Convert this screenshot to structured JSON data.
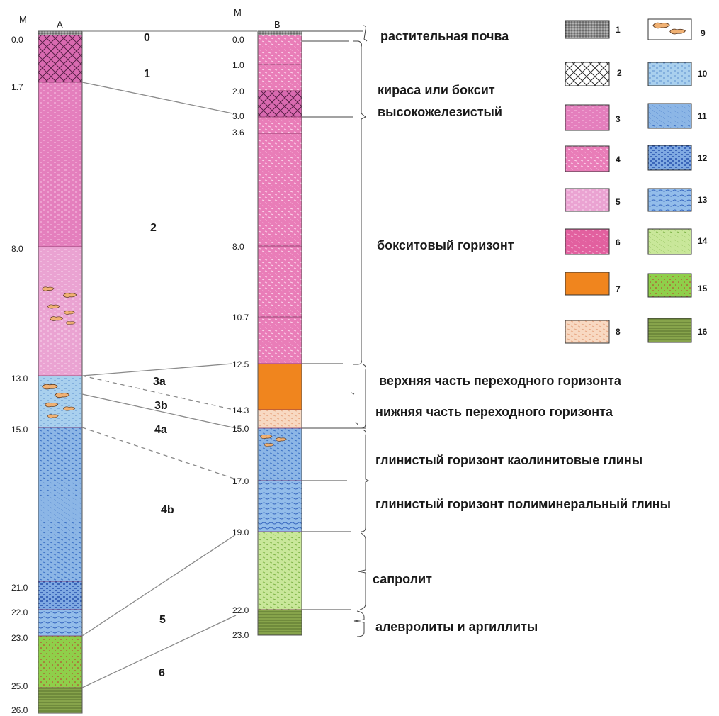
{
  "unit_label_a": "М",
  "unit_label_b": "М",
  "column_a": {
    "header": "A",
    "depths": [
      "0.0",
      "1.7",
      "8.0",
      "13.0",
      "15.0",
      "21.0",
      "22.0",
      "23.0",
      "25.0",
      "26.0"
    ],
    "zones": [
      "0",
      "1",
      "2",
      "3a",
      "3b",
      "4a",
      "4b",
      "5",
      "6"
    ]
  },
  "column_b": {
    "header": "B",
    "depths": [
      "0.0",
      "1.0",
      "2.0",
      "3.0",
      "3.6",
      "8.0",
      "10.7",
      "12.5",
      "14.3",
      "15.0",
      "17.0",
      "19.0",
      "22.0",
      "23.0"
    ]
  },
  "horizons": [
    "растительная почва",
    "кираса или боксит",
    "высокожелезистый",
    "бокситовый горизонт",
    "верхняя часть переходного горизонта",
    "нижняя часть переходного горизонта",
    "глинистый горизонт каолинитовые глины",
    "глинистый горизонт полиминеральный глины",
    "сапролит",
    "алевролиты и аргиллиты"
  ],
  "legend": [
    {
      "num": "1",
      "pattern": "soil"
    },
    {
      "num": "2",
      "pattern": "crosshatch"
    },
    {
      "num": "3",
      "pattern": "pink-dense"
    },
    {
      "num": "4",
      "pattern": "pink-dash"
    },
    {
      "num": "5",
      "pattern": "pink-light"
    },
    {
      "num": "6",
      "pattern": "magenta"
    },
    {
      "num": "7",
      "pattern": "orange"
    },
    {
      "num": "8",
      "pattern": "peach"
    },
    {
      "num": "9",
      "pattern": "nodules"
    },
    {
      "num": "10",
      "pattern": "blue-light"
    },
    {
      "num": "11",
      "pattern": "blue-mid"
    },
    {
      "num": "12",
      "pattern": "blue-dark"
    },
    {
      "num": "13",
      "pattern": "blue-wave"
    },
    {
      "num": "14",
      "pattern": "green-light"
    },
    {
      "num": "15",
      "pattern": "green-dot"
    },
    {
      "num": "16",
      "pattern": "olive-stripe"
    }
  ],
  "colors": {
    "pink": "#e47fbd",
    "pink_light": "#eaa3d2",
    "magenta": "#e2609f",
    "orange": "#f0851e",
    "peach": "#f8d9c2",
    "blue": "#8cb6e6",
    "blue_light": "#a9d0ee",
    "green_light": "#c9e79a",
    "green": "#8fcf4a",
    "olive": "#6f8a3c",
    "soil": "#9a9a9a"
  }
}
